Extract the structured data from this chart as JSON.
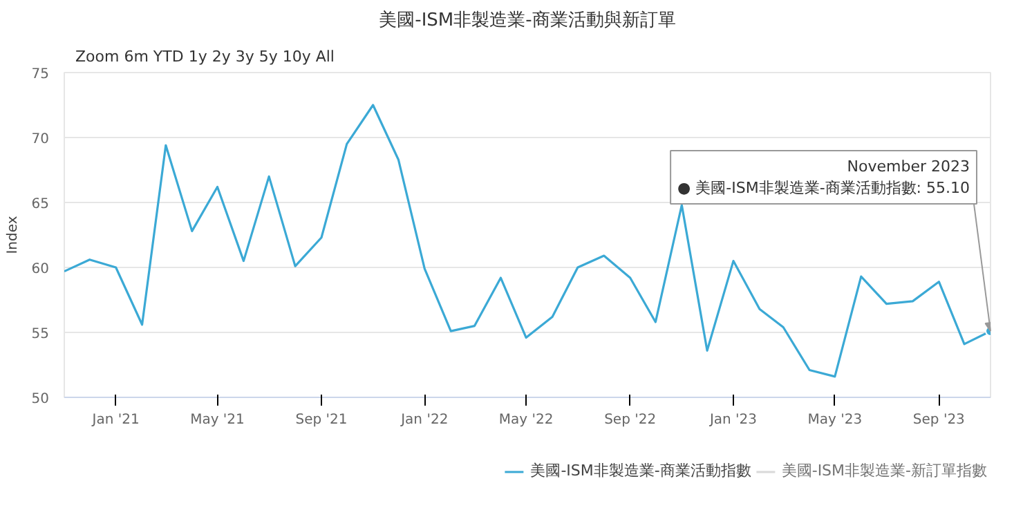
{
  "chart_data": {
    "type": "line",
    "title": "美國-ISM非製造業-商業活動與新訂單",
    "ylabel": "Index",
    "x": [
      "2020-11",
      "2020-12",
      "2021-01",
      "2021-02",
      "2021-03",
      "2021-04",
      "2021-05",
      "2021-06",
      "2021-07",
      "2021-08",
      "2021-09",
      "2021-10",
      "2021-11",
      "2021-12",
      "2022-01",
      "2022-02",
      "2022-03",
      "2022-04",
      "2022-05",
      "2022-06",
      "2022-07",
      "2022-08",
      "2022-09",
      "2022-10",
      "2022-11",
      "2022-12",
      "2023-01",
      "2023-02",
      "2023-03",
      "2023-04",
      "2023-05",
      "2023-06",
      "2023-07",
      "2023-08",
      "2023-09",
      "2023-10",
      "2023-11"
    ],
    "series": [
      {
        "name": "美國-ISM非製造業-商業活動指數",
        "color": "#3ba9d5",
        "values": [
          59.7,
          60.6,
          60.0,
          55.6,
          69.4,
          62.8,
          66.2,
          60.5,
          67.0,
          60.1,
          62.3,
          69.5,
          72.5,
          68.3,
          59.9,
          55.1,
          55.5,
          59.2,
          54.6,
          56.2,
          60.0,
          60.9,
          59.2,
          55.8,
          64.8,
          53.6,
          60.5,
          56.8,
          55.4,
          52.1,
          51.6,
          59.3,
          57.2,
          57.4,
          58.9,
          54.1,
          55.1
        ]
      },
      {
        "name": "美國-ISM非製造業-新訂單指數",
        "color": "#cccccc",
        "values": [
          null,
          null,
          null,
          null,
          null,
          null,
          null,
          null,
          null,
          null,
          null,
          null,
          null,
          null,
          null,
          null,
          null,
          null,
          null,
          null,
          null,
          null,
          null,
          null,
          null,
          null,
          null,
          null,
          null,
          null,
          null,
          null,
          null,
          null,
          null,
          null,
          null
        ]
      }
    ],
    "xlim": [
      "2020-11",
      "2023-11"
    ],
    "xticks": [
      {
        "value": "2021-01",
        "label": "Jan '21"
      },
      {
        "value": "2021-05",
        "label": "May '21"
      },
      {
        "value": "2021-09",
        "label": "Sep '21"
      },
      {
        "value": "2022-01",
        "label": "Jan '22"
      },
      {
        "value": "2022-05",
        "label": "May '22"
      },
      {
        "value": "2022-09",
        "label": "Sep '22"
      },
      {
        "value": "2023-01",
        "label": "Jan '23"
      },
      {
        "value": "2023-05",
        "label": "May '23"
      },
      {
        "value": "2023-09",
        "label": "Sep '23"
      }
    ],
    "ylim": [
      50,
      75
    ],
    "yticks": [
      50,
      55,
      60,
      65,
      70,
      75
    ],
    "grid": "y",
    "legend": "bottom",
    "marker": "none",
    "line_style": "solid",
    "annotations": [
      "Zoom",
      "6m",
      "YTD",
      "1y",
      "2y",
      "3y",
      "5y",
      "10y",
      "All",
      {
        "text": "November 2023\n● 美國-ISM非製造業-商業活動指數: 55.10",
        "x": "2023-11",
        "y": 55.1
      }
    ]
  }
}
